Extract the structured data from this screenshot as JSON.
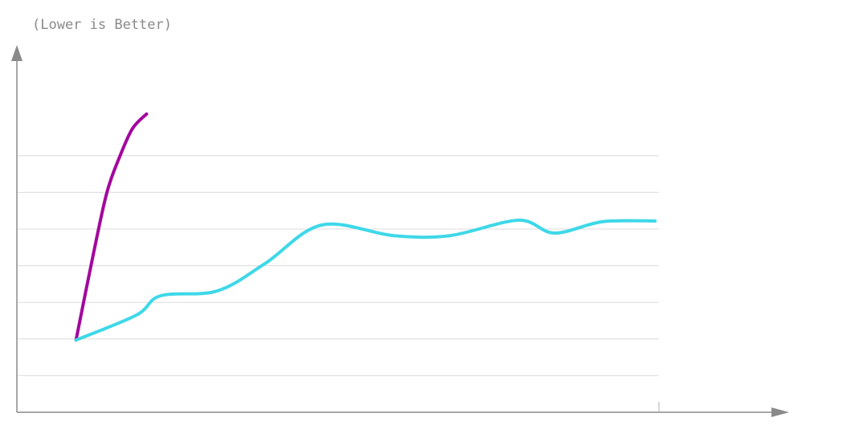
{
  "chart_data": {
    "type": "line",
    "title": "(Lower is Better)",
    "xlim": [
      0,
      12
    ],
    "xticks": [
      10
    ],
    "ylim": [
      0,
      10
    ],
    "yticks": [
      1,
      2,
      3,
      4,
      5,
      6,
      7
    ],
    "grid": true,
    "series": [
      {
        "color": "#a3079d",
        "x": [
          0.91,
          1.17,
          1.39,
          1.59,
          1.79,
          2.01
        ],
        "values": [
          1.97,
          4.23,
          5.99,
          6.97,
          7.74,
          8.14
        ]
      },
      {
        "color": "#3ed8e8",
        "x": [
          0.91,
          1.85,
          2.23,
          3.11,
          3.86,
          4.74,
          5.86,
          6.74,
          7.81,
          8.37,
          9.12,
          9.94
        ],
        "values": [
          1.97,
          2.65,
          3.18,
          3.31,
          4.06,
          5.11,
          4.82,
          4.82,
          5.24,
          4.89,
          5.2,
          5.22
        ]
      }
    ]
  }
}
